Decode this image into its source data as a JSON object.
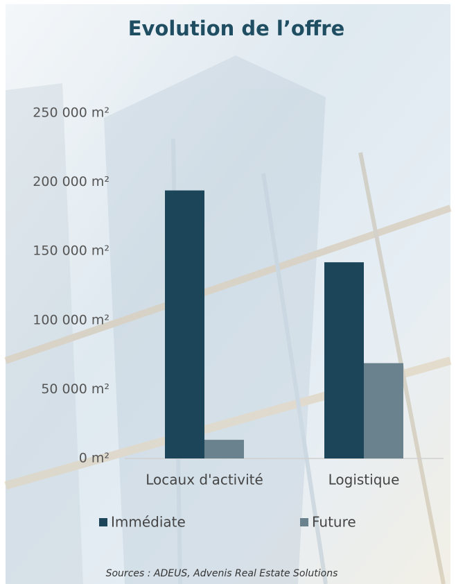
{
  "chart_data": {
    "type": "bar",
    "title": "Evolution de l’offre",
    "categories": [
      "Locaux d'activité",
      "Logistique"
    ],
    "series": [
      {
        "name": "Immédiate",
        "color": "#1c4559",
        "values": [
          194000,
          142000
        ]
      },
      {
        "name": "Future",
        "color": "#6a818e",
        "values": [
          13500,
          69000
        ]
      }
    ],
    "ylim": [
      0,
      250000
    ],
    "yticks": [
      {
        "value": 0,
        "label": "0 m²"
      },
      {
        "value": 50000,
        "label": "50 000 m²"
      },
      {
        "value": 100000,
        "label": "100 000 m²"
      },
      {
        "value": 150000,
        "label": "150 000 m²"
      },
      {
        "value": 200000,
        "label": "200 000 m²"
      },
      {
        "value": 250000,
        "label": "250 000 m²"
      }
    ],
    "grid": false,
    "legend": "bottom",
    "source": "Sources : ADEUS, Advenis Real Estate Solutions"
  }
}
